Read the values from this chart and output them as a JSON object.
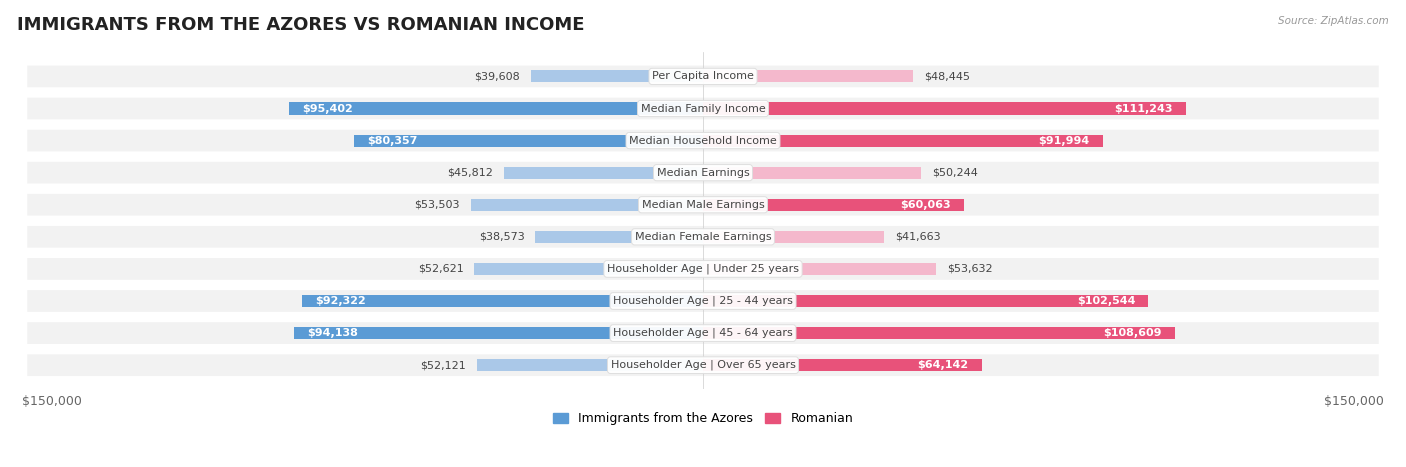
{
  "title": "IMMIGRANTS FROM THE AZORES VS ROMANIAN INCOME",
  "source": "Source: ZipAtlas.com",
  "categories": [
    "Per Capita Income",
    "Median Family Income",
    "Median Household Income",
    "Median Earnings",
    "Median Male Earnings",
    "Median Female Earnings",
    "Householder Age | Under 25 years",
    "Householder Age | 25 - 44 years",
    "Householder Age | 45 - 64 years",
    "Householder Age | Over 65 years"
  ],
  "azores_values": [
    39608,
    95402,
    80357,
    45812,
    53503,
    38573,
    52621,
    92322,
    94138,
    52121
  ],
  "romanian_values": [
    48445,
    111243,
    91994,
    50244,
    60063,
    41663,
    53632,
    102544,
    108609,
    64142
  ],
  "azores_labels": [
    "$39,608",
    "$95,402",
    "$80,357",
    "$45,812",
    "$53,503",
    "$38,573",
    "$52,621",
    "$92,322",
    "$94,138",
    "$52,121"
  ],
  "romanian_labels": [
    "$48,445",
    "$111,243",
    "$91,994",
    "$50,244",
    "$60,063",
    "$41,663",
    "$53,632",
    "$102,544",
    "$108,609",
    "$64,142"
  ],
  "azores_color_light": "#aac8e8",
  "azores_color_dark": "#5b9bd5",
  "romanian_color_light": "#f4b8cc",
  "romanian_color_dark": "#e8527a",
  "inside_label_threshold": 60000,
  "max_value": 150000,
  "background_color": "#ffffff",
  "row_bg_color": "#f2f2f2",
  "legend_azores": "Immigrants from the Azores",
  "legend_romanian": "Romanian",
  "title_fontsize": 13,
  "label_fontsize": 8,
  "category_fontsize": 8,
  "axis_label": "$150,000"
}
